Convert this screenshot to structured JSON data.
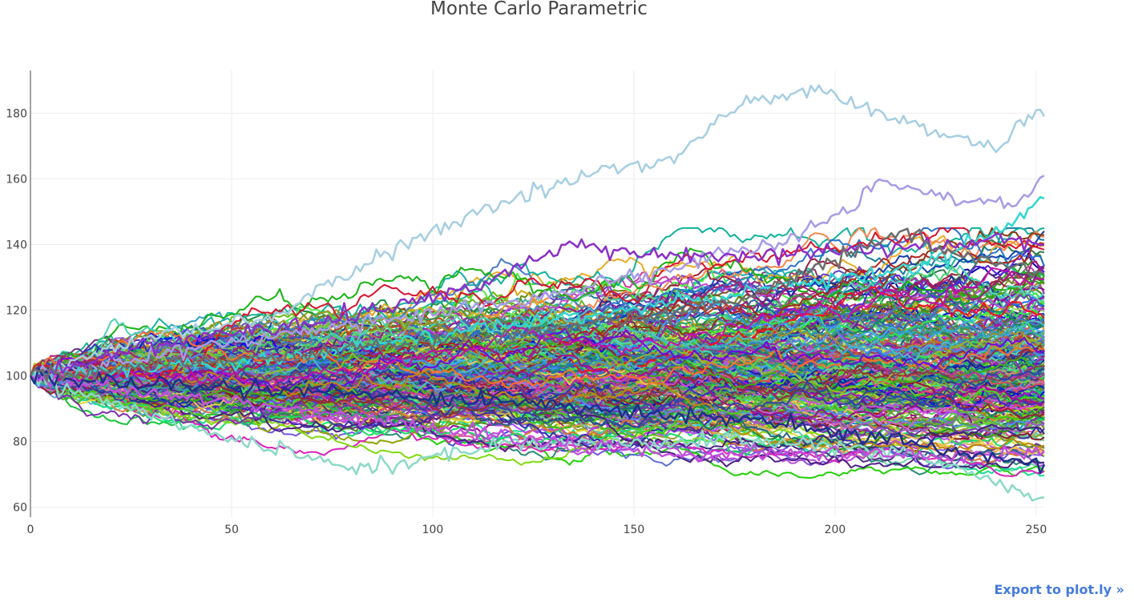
{
  "chart_data": {
    "type": "line",
    "title": "Monte Carlo Parametric",
    "xlabel": "",
    "ylabel": "",
    "xlim": [
      0,
      252
    ],
    "ylim": [
      57,
      193
    ],
    "x_ticks": [
      0,
      50,
      100,
      150,
      200,
      250
    ],
    "y_ticks": [
      60,
      80,
      100,
      120,
      140,
      160,
      180
    ],
    "grid": true,
    "legend": "none",
    "start_value": 100,
    "n_steps": 252,
    "n_paths_visible": "≈300 simulated price paths",
    "highlighted_paths": [
      {
        "name": "",
        "color": "#a6cee3",
        "points": [
          [
            0,
            100
          ],
          [
            30,
            112
          ],
          [
            60,
            118
          ],
          [
            80,
            132
          ],
          [
            100,
            144
          ],
          [
            120,
            154
          ],
          [
            140,
            162
          ],
          [
            160,
            166
          ],
          [
            175,
            182
          ],
          [
            195,
            187
          ],
          [
            210,
            181
          ],
          [
            225,
            174
          ],
          [
            240,
            170
          ],
          [
            250,
            180
          ],
          [
            252,
            179
          ]
        ]
      },
      {
        "name": "",
        "color": "#a79be8",
        "points": [
          [
            0,
            100
          ],
          [
            40,
            108
          ],
          [
            80,
            116
          ],
          [
            120,
            122
          ],
          [
            160,
            133
          ],
          [
            190,
            142
          ],
          [
            205,
            152
          ],
          [
            210,
            160
          ],
          [
            220,
            157
          ],
          [
            235,
            153
          ],
          [
            245,
            152
          ],
          [
            252,
            161
          ]
        ]
      },
      {
        "name": "",
        "color": "#2ed8d0",
        "points": [
          [
            0,
            100
          ],
          [
            50,
            104
          ],
          [
            100,
            112
          ],
          [
            150,
            120
          ],
          [
            190,
            128
          ],
          [
            220,
            133
          ],
          [
            240,
            144
          ],
          [
            252,
            154
          ]
        ]
      },
      {
        "name": "",
        "color": "#8a2fc7",
        "points": [
          [
            0,
            100
          ],
          [
            40,
            112
          ],
          [
            80,
            118
          ],
          [
            110,
            127
          ],
          [
            135,
            140
          ],
          [
            160,
            136
          ],
          [
            190,
            137
          ],
          [
            220,
            139
          ],
          [
            240,
            141
          ],
          [
            252,
            140
          ]
        ]
      },
      {
        "name": "",
        "color": "#8ad9c7",
        "points": [
          [
            0,
            100
          ],
          [
            20,
            92
          ],
          [
            40,
            84
          ],
          [
            60,
            78
          ],
          [
            80,
            72
          ],
          [
            90,
            72
          ],
          [
            100,
            76
          ],
          [
            130,
            80
          ],
          [
            160,
            80
          ],
          [
            190,
            80
          ],
          [
            220,
            76
          ],
          [
            235,
            70
          ],
          [
            245,
            65
          ],
          [
            252,
            63
          ]
        ]
      },
      {
        "name": "",
        "color": "#c34fdb",
        "points": [
          [
            0,
            100
          ],
          [
            50,
            92
          ],
          [
            100,
            84
          ],
          [
            140,
            78
          ],
          [
            170,
            76
          ],
          [
            200,
            77
          ],
          [
            230,
            75
          ],
          [
            252,
            77
          ]
        ]
      },
      {
        "name": "",
        "color": "#1d2f8a",
        "points": [
          [
            0,
            100
          ],
          [
            60,
            96
          ],
          [
            120,
            92
          ],
          [
            180,
            86
          ],
          [
            220,
            80
          ],
          [
            240,
            74
          ],
          [
            252,
            73
          ]
        ]
      },
      {
        "name": "",
        "color": "#6d6d6d",
        "points": [
          [
            0,
            100
          ],
          [
            60,
            106
          ],
          [
            120,
            112
          ],
          [
            180,
            124
          ],
          [
            205,
            138
          ],
          [
            216,
            144
          ],
          [
            230,
            138
          ],
          [
            252,
            131
          ]
        ]
      }
    ]
  },
  "export": {
    "label": "Export to plot.ly »"
  }
}
